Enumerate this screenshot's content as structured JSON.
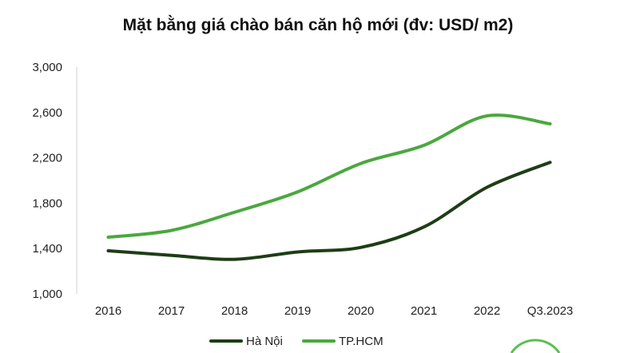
{
  "chart_data": {
    "type": "line",
    "title": "Mặt bằng giá chào bán căn hộ mới (đv: USD/ m2)",
    "categories": [
      "2016",
      "2017",
      "2018",
      "2019",
      "2020",
      "2021",
      "2022",
      "Q3.2023"
    ],
    "y_ticks": [
      "1,000",
      "1,400",
      "1,800",
      "2,200",
      "2,600",
      "3,000"
    ],
    "ylim": [
      1000,
      3000
    ],
    "grid": false,
    "legend_position": "bottom",
    "series": [
      {
        "name": "Hà Nội",
        "color": "#1e3d16",
        "values": [
          1380,
          1340,
          1305,
          1370,
          1410,
          1590,
          1940,
          2160
        ]
      },
      {
        "name": "TP.HCM",
        "color": "#4aa83e",
        "values": [
          1500,
          1560,
          1720,
          1900,
          2150,
          2310,
          2570,
          2500
        ]
      }
    ]
  }
}
